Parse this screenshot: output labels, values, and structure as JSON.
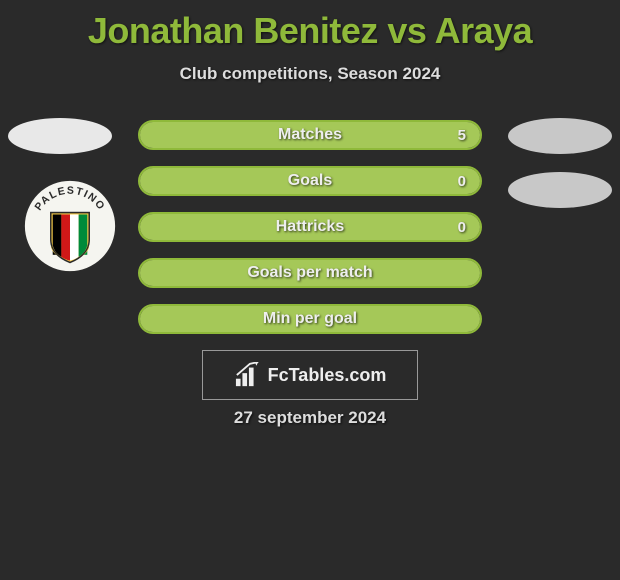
{
  "title": "Jonathan Benitez vs Araya",
  "subtitle": "Club competitions, Season 2024",
  "date": "27 september 2024",
  "watermark": "FcTables.com",
  "colors": {
    "background": "#2a2a2a",
    "accent": "#8fb93a",
    "bar_fill": "#a5c858",
    "text": "#eee",
    "avatar_left": "#e8e8e8",
    "avatar_right": "#c8c8c8"
  },
  "team_logo": {
    "name": "palestino",
    "text": "PALESTINO",
    "stripe_colors": [
      "#000000",
      "#d01818",
      "#ffffff",
      "#008a3a"
    ],
    "shield_accent": "#f5c945"
  },
  "bars": [
    {
      "label": "Matches",
      "left_value": "",
      "right_value": "5",
      "left_fill_pct": 50,
      "right_fill_pct": 50
    },
    {
      "label": "Goals",
      "left_value": "",
      "right_value": "0",
      "left_fill_pct": 50,
      "right_fill_pct": 50
    },
    {
      "label": "Hattricks",
      "left_value": "",
      "right_value": "0",
      "left_fill_pct": 50,
      "right_fill_pct": 50
    },
    {
      "label": "Goals per match",
      "left_value": "",
      "right_value": "",
      "left_fill_pct": 50,
      "right_fill_pct": 50
    },
    {
      "label": "Min per goal",
      "left_value": "",
      "right_value": "",
      "left_fill_pct": 50,
      "right_fill_pct": 50
    }
  ]
}
